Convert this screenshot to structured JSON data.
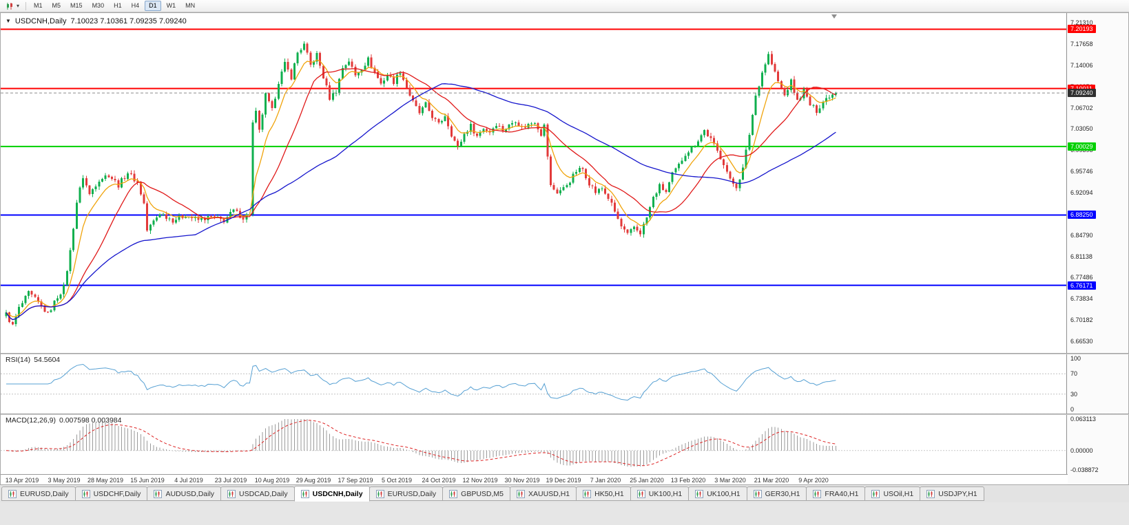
{
  "toolbar": {
    "chart_type_icon": "candlestick-chart-icon",
    "dropdown_caret": "▾",
    "timeframes": [
      "M1",
      "M5",
      "M15",
      "M30",
      "H1",
      "H4",
      "D1",
      "W1",
      "MN"
    ],
    "active_timeframe": "D1"
  },
  "chart": {
    "menu_arrow": "▼",
    "title_symbol": "USDCNH,Daily",
    "title_ohlc": "7.10023 7.10361 7.09235 7.09240"
  },
  "rsi_panel": {
    "label": "RSI(14)",
    "value": "54.5604"
  },
  "macd_panel": {
    "label": "MACD(12,26,9)",
    "value": "0.007598 0.003984"
  },
  "tabbar": {
    "active_index": 4,
    "tabs": [
      {
        "label": "EURUSD,Daily"
      },
      {
        "label": "USDCHF,Daily"
      },
      {
        "label": "AUDUSD,Daily"
      },
      {
        "label": "USDCAD,Daily"
      },
      {
        "label": "USDCNH,Daily"
      },
      {
        "label": "EURUSD,Daily"
      },
      {
        "label": "GBPUSD,M5"
      },
      {
        "label": "XAUUSD,H1"
      },
      {
        "label": "HK50,H1"
      },
      {
        "label": "UK100,H1"
      },
      {
        "label": "UK100,H1"
      },
      {
        "label": "GER30,H1"
      },
      {
        "label": "FRA40,H1"
      },
      {
        "label": "USOil,H1"
      },
      {
        "label": "USDJPY,H1"
      }
    ]
  },
  "chart_data": {
    "type": "candlestick",
    "symbol": "USDCNH",
    "timeframe": "Daily",
    "ohlc_display": {
      "open": "7.10023",
      "high": "7.10361",
      "low": "7.09235",
      "close": "7.09240"
    },
    "bars": 260,
    "price_range": {
      "min": 6.65,
      "max": 7.225
    },
    "price_tick_start": 7.2131,
    "price_tick_step": 0.03652,
    "price_tick_count": 16,
    "x_labels": [
      "13 Apr 2019",
      "3 May 2019",
      "28 May 2019",
      "15 Jun 2019",
      "4 Jul 2019",
      "23 Jul 2019",
      "10 Aug 2019",
      "29 Aug 2019",
      "17 Sep 2019",
      "5 Oct 2019",
      "24 Oct 2019",
      "12 Nov 2019",
      "30 Nov 2019",
      "19 Dec 2019",
      "7 Jan 2020",
      "25 Jan 2020",
      "13 Feb 2020",
      "3 Mar 2020",
      "21 Mar 2020",
      "9 Apr 2020"
    ],
    "x_label_first_bar": 5,
    "x_label_bar_step": 13,
    "noise_amplitude": 0.0045,
    "close_waypoints": [
      [
        0,
        6.712
      ],
      [
        2,
        6.692
      ],
      [
        4,
        6.722
      ],
      [
        7,
        6.748
      ],
      [
        10,
        6.732
      ],
      [
        13,
        6.712
      ],
      [
        16,
        6.742
      ],
      [
        18,
        6.758
      ],
      [
        20,
        6.82
      ],
      [
        22,
        6.905
      ],
      [
        24,
        6.948
      ],
      [
        26,
        6.918
      ],
      [
        29,
        6.944
      ],
      [
        32,
        6.952
      ],
      [
        35,
        6.934
      ],
      [
        38,
        6.956
      ],
      [
        41,
        6.938
      ],
      [
        43,
        6.902
      ],
      [
        44,
        6.856
      ],
      [
        46,
        6.872
      ],
      [
        48,
        6.886
      ],
      [
        52,
        6.874
      ],
      [
        56,
        6.882
      ],
      [
        60,
        6.874
      ],
      [
        64,
        6.879
      ],
      [
        68,
        6.873
      ],
      [
        71,
        6.89
      ],
      [
        74,
        6.878
      ],
      [
        76,
        6.886
      ],
      [
        77,
        7.04
      ],
      [
        78,
        7.058
      ],
      [
        79,
        7.026
      ],
      [
        81,
        7.088
      ],
      [
        83,
        7.062
      ],
      [
        85,
        7.112
      ],
      [
        87,
        7.142
      ],
      [
        89,
        7.12
      ],
      [
        91,
        7.162
      ],
      [
        93,
        7.175
      ],
      [
        95,
        7.14
      ],
      [
        97,
        7.158
      ],
      [
        99,
        7.12
      ],
      [
        101,
        7.084
      ],
      [
        103,
        7.096
      ],
      [
        105,
        7.136
      ],
      [
        107,
        7.148
      ],
      [
        109,
        7.122
      ],
      [
        111,
        7.136
      ],
      [
        113,
        7.15
      ],
      [
        115,
        7.128
      ],
      [
        117,
        7.108
      ],
      [
        119,
        7.124
      ],
      [
        121,
        7.112
      ],
      [
        123,
        7.13
      ],
      [
        125,
        7.102
      ],
      [
        127,
        7.076
      ],
      [
        129,
        7.058
      ],
      [
        131,
        7.072
      ],
      [
        133,
        7.052
      ],
      [
        135,
        7.038
      ],
      [
        137,
        7.054
      ],
      [
        139,
        7.022
      ],
      [
        141,
        6.998
      ],
      [
        143,
        7.022
      ],
      [
        145,
        7.036
      ],
      [
        147,
        7.018
      ],
      [
        149,
        7.032
      ],
      [
        151,
        7.026
      ],
      [
        153,
        7.04
      ],
      [
        155,
        7.028
      ],
      [
        157,
        7.036
      ],
      [
        159,
        7.046
      ],
      [
        161,
        7.032
      ],
      [
        163,
        7.038
      ],
      [
        165,
        7.044
      ],
      [
        167,
        7.022
      ],
      [
        168,
        7.036
      ],
      [
        170,
        6.932
      ],
      [
        172,
        6.922
      ],
      [
        174,
        6.928
      ],
      [
        176,
        6.942
      ],
      [
        178,
        6.958
      ],
      [
        180,
        6.962
      ],
      [
        182,
        6.938
      ],
      [
        184,
        6.922
      ],
      [
        186,
        6.928
      ],
      [
        188,
        6.912
      ],
      [
        190,
        6.888
      ],
      [
        192,
        6.862
      ],
      [
        194,
        6.848
      ],
      [
        196,
        6.862
      ],
      [
        198,
        6.852
      ],
      [
        200,
        6.878
      ],
      [
        202,
        6.912
      ],
      [
        204,
        6.932
      ],
      [
        206,
        6.922
      ],
      [
        208,
        6.952
      ],
      [
        210,
        6.968
      ],
      [
        212,
        6.988
      ],
      [
        214,
        6.998
      ],
      [
        216,
        7.012
      ],
      [
        218,
        7.028
      ],
      [
        220,
        7.012
      ],
      [
        222,
        6.992
      ],
      [
        224,
        6.972
      ],
      [
        226,
        6.942
      ],
      [
        228,
        6.932
      ],
      [
        230,
        6.962
      ],
      [
        232,
        7.022
      ],
      [
        234,
        7.088
      ],
      [
        236,
        7.128
      ],
      [
        238,
        7.158
      ],
      [
        239,
        7.142
      ],
      [
        241,
        7.112
      ],
      [
        243,
        7.088
      ],
      [
        245,
        7.112
      ],
      [
        247,
        7.078
      ],
      [
        249,
        7.096
      ],
      [
        251,
        7.072
      ],
      [
        253,
        7.062
      ],
      [
        255,
        7.078
      ],
      [
        257,
        7.088
      ],
      [
        259,
        7.0924
      ]
    ],
    "levels": [
      {
        "price": 7.20193,
        "label": "7.20193",
        "color": "#ff0000",
        "badge_text_color": "#ffffff",
        "width": 2
      },
      {
        "price": 7.10011,
        "label": "7.10011",
        "color": "#ff0000",
        "badge_text_color": "#ffffff",
        "width": 2
      },
      {
        "price": 7.00029,
        "label": "7.00029",
        "color": "#00d000",
        "badge_text_color": "#ffffff",
        "width": 2
      },
      {
        "price": 6.8825,
        "label": "6.88250",
        "color": "#0000ff",
        "badge_text_color": "#ffffff",
        "width": 2
      },
      {
        "price": 6.76171,
        "label": "6.76171",
        "color": "#0000ff",
        "badge_text_color": "#ffffff",
        "width": 2
      }
    ],
    "current_price": {
      "price": 7.0924,
      "label": "7.09240",
      "badge_color": "#303030",
      "line_color": "#8a8a8a"
    },
    "candle_colors": {
      "up": "#0faf4e",
      "down": "#e23a3a"
    },
    "moving_averages": [
      {
        "type": "ema",
        "period": 8,
        "color": "#f0a30a"
      },
      {
        "type": "sma",
        "period": 20,
        "color": "#e01818"
      },
      {
        "type": "sma",
        "period": 60,
        "color": "#1414cc"
      }
    ],
    "rsi": {
      "period": 14,
      "color": "#56a0d3",
      "levels": [
        70,
        30
      ],
      "scale": [
        0,
        100
      ],
      "scale_labels": [
        [
          100,
          "100"
        ],
        [
          70,
          "70"
        ],
        [
          30,
          "30"
        ],
        [
          0,
          "0"
        ]
      ]
    },
    "macd": {
      "fast": 12,
      "slow": 26,
      "signal": 9,
      "hist_color": "#9a9a9a",
      "signal_color": "#dd2222",
      "scale": [
        -0.038872,
        0.063113
      ],
      "scale_labels": [
        [
          0.063113,
          "0.063113"
        ],
        [
          0,
          "0.00000"
        ],
        [
          -0.038872,
          "-0.038872"
        ]
      ]
    }
  }
}
